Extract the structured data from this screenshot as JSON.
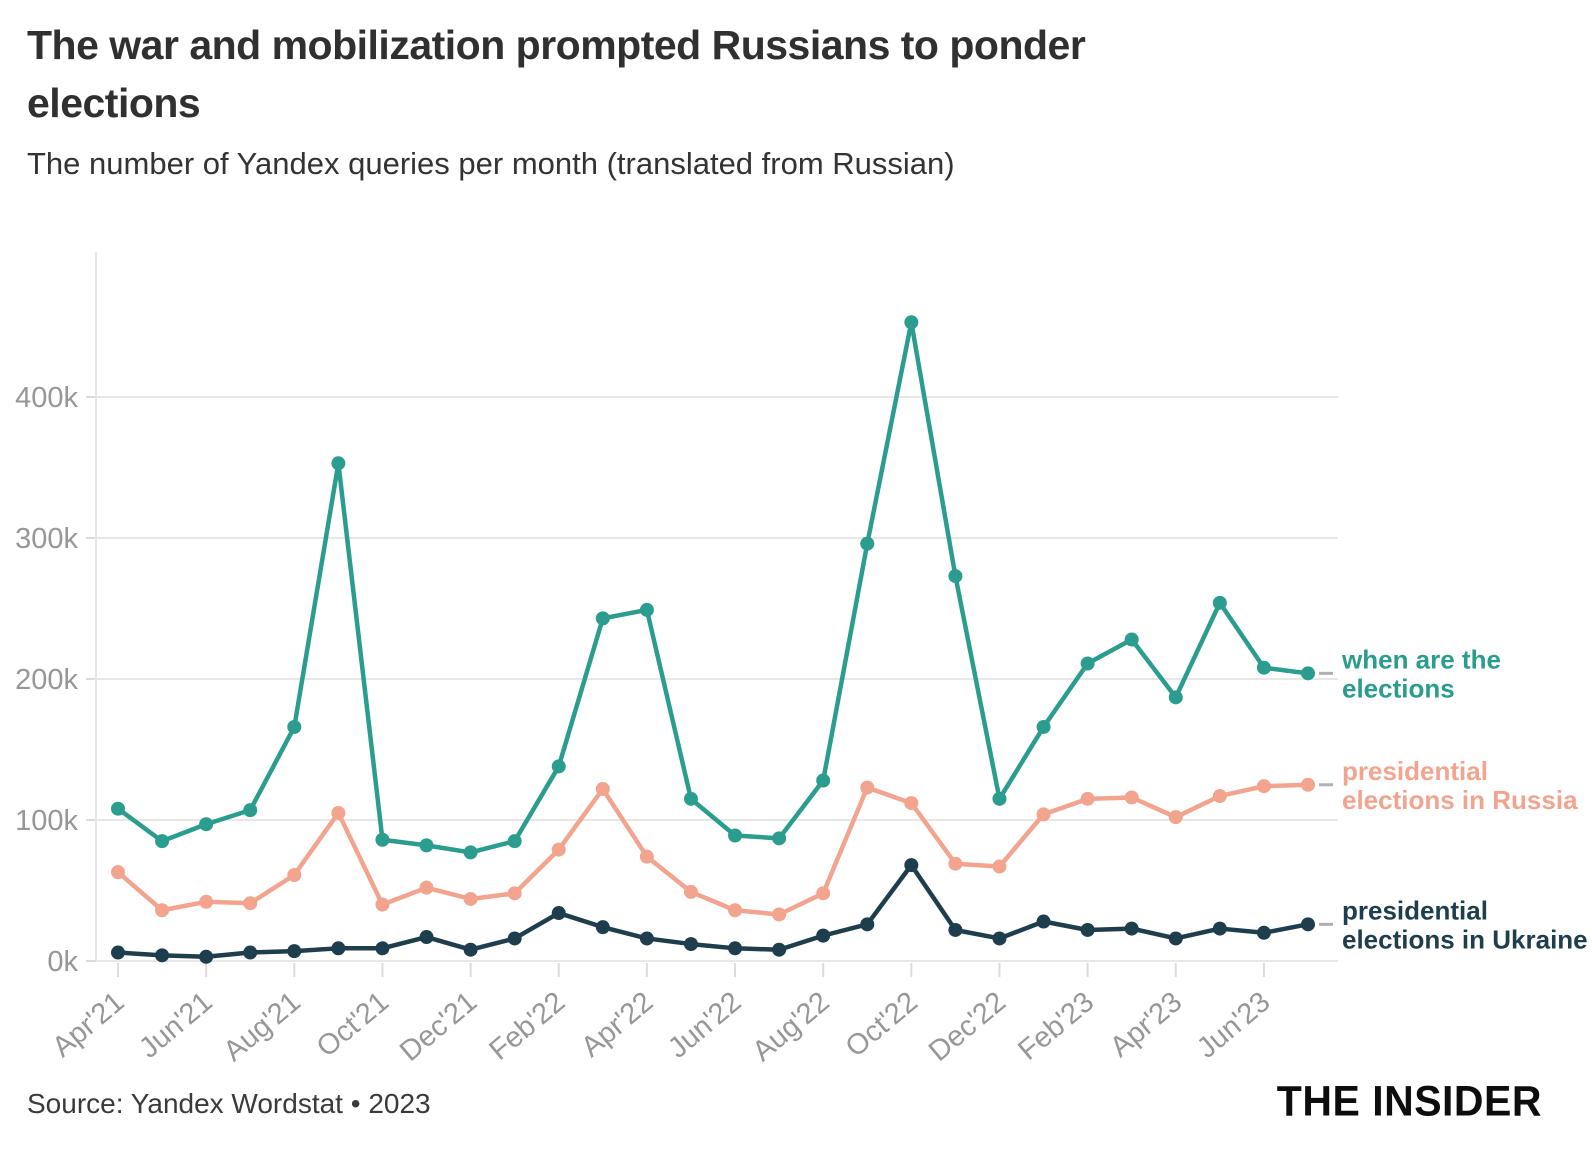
{
  "header": {
    "title_lines": [
      "The war and mobilization prompted Russians to ponder",
      "elections"
    ],
    "subtitle": "The number of Yandex queries per month (translated from Russian)"
  },
  "footer": {
    "source": "Source: Yandex Wordstat • 2023",
    "logo": "THE INSIDER"
  },
  "chart_data": {
    "type": "line",
    "title": "The war and mobilization prompted Russians to ponder elections",
    "subtitle": "The number of Yandex queries per month (translated from Russian)",
    "unit": "queries per month (values in thousands)",
    "grid": "horizontal",
    "legend_position": "right of line ends",
    "ylim_k": [
      0,
      500
    ],
    "y_ticks": {
      "labels": [
        "0k",
        "100k",
        "200k",
        "300k",
        "400k"
      ],
      "values_k": [
        0,
        100,
        200,
        300,
        400
      ]
    },
    "x": [
      "Apr'21",
      "May'21",
      "Jun'21",
      "Jul'21",
      "Aug'21",
      "Sep'21",
      "Oct'21",
      "Nov'21",
      "Dec'21",
      "Jan'22",
      "Feb'22",
      "Mar'22",
      "Apr'22",
      "May'22",
      "Jun'22",
      "Jul'22",
      "Aug'22",
      "Sep'22",
      "Oct'22",
      "Nov'22",
      "Dec'22",
      "Jan'23",
      "Feb'23",
      "Mar'23",
      "Apr'23",
      "May'23",
      "Jun'23",
      "Jul'23"
    ],
    "x_axis_tick_labels": [
      "Apr'21",
      "Jun'21",
      "Aug'21",
      "Oct'21",
      "Dec'21",
      "Feb'22",
      "Apr'22",
      "Jun'22",
      "Aug'22",
      "Oct'22",
      "Dec'22",
      "Feb'23",
      "Apr'23",
      "Jun'23"
    ],
    "series": [
      {
        "name": "when are the elections",
        "legend_lines": [
          "when are the",
          "elections"
        ],
        "color": "#2a9d8f",
        "values_k": [
          108,
          85,
          97,
          107,
          166,
          353,
          86,
          82,
          77,
          85,
          138,
          243,
          249,
          115,
          89,
          87,
          128,
          296,
          453,
          273,
          115,
          166,
          211,
          228,
          187,
          254,
          208,
          204
        ]
      },
      {
        "name": "presidential elections in Russia",
        "legend_lines": [
          "presidential",
          "elections in Russia"
        ],
        "color": "#f3a48e",
        "values_k": [
          63,
          36,
          42,
          41,
          61,
          105,
          40,
          52,
          44,
          48,
          79,
          122,
          74,
          49,
          36,
          33,
          48,
          123,
          112,
          69,
          67,
          104,
          115,
          116,
          102,
          117,
          124,
          125
        ]
      },
      {
        "name": "presidential elections in Ukraine",
        "legend_lines": [
          "presidential",
          "elections in Ukraine"
        ],
        "color": "#1e3e4e",
        "values_k": [
          6,
          4,
          3,
          6,
          7,
          9,
          9,
          17,
          8,
          16,
          34,
          24,
          16,
          12,
          9,
          8,
          18,
          26,
          68,
          22,
          16,
          28,
          22,
          23,
          16,
          23,
          20,
          26
        ]
      }
    ]
  }
}
